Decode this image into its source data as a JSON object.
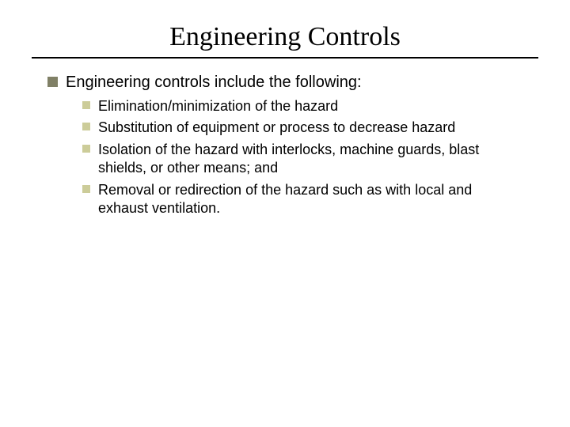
{
  "slide": {
    "title": "Engineering Controls",
    "title_fontfamily": "Times New Roman",
    "title_fontsize": 34,
    "title_color": "#000000",
    "underline_color": "#000000",
    "background_color": "#ffffff",
    "bullets": {
      "level1_marker_color": "#808066",
      "level1_marker_size": 13,
      "level1_fontsize": 20,
      "level2_marker_color": "#cccc99",
      "level2_marker_size": 10,
      "level2_fontsize": 18,
      "items": [
        {
          "text": "Engineering controls include the following:",
          "level": 1,
          "children": [
            {
              "text": "Elimination/minimization of the hazard"
            },
            {
              "text": "Substitution of equipment or process to decrease hazard"
            },
            {
              "text": "Isolation of the hazard with interlocks, machine guards, blast shields, or other means; and"
            },
            {
              "text": "Removal or redirection of the hazard such as with local and exhaust ventilation."
            }
          ]
        }
      ]
    }
  }
}
